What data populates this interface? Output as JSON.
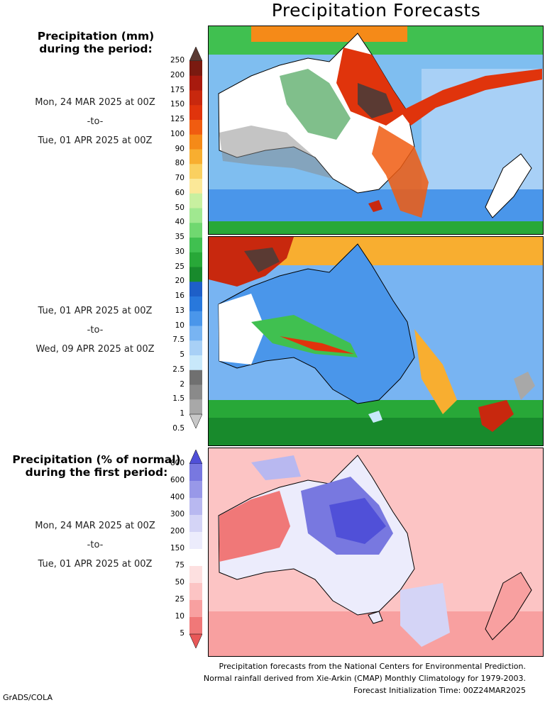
{
  "title": "Precipitation Forecasts",
  "panel1": {
    "header_line1": "Precipitation (mm)",
    "header_line2": "during the period:",
    "start": "Mon, 24 MAR 2025 at 00Z",
    "sep": "-to-",
    "end": "Tue, 01 APR 2025 at 00Z"
  },
  "panel2": {
    "start": "Tue, 01 APR 2025 at 00Z",
    "sep": "-to-",
    "end": "Wed, 09 APR 2025 at 00Z"
  },
  "panel3": {
    "header_line1": "Precipitation (% of normal)",
    "header_line2": "during the first period:",
    "start": "Mon, 24 MAR 2025 at 00Z",
    "sep": "-to-",
    "end": "Tue, 01 APR 2025 at 00Z"
  },
  "mm_scale": {
    "labels": [
      "250",
      "200",
      "175",
      "150",
      "125",
      "100",
      "90",
      "80",
      "70",
      "60",
      "50",
      "40",
      "35",
      "30",
      "25",
      "20",
      "16",
      "13",
      "10",
      "7.5",
      "5",
      "2.5",
      "2",
      "1.5",
      "1",
      "0.5"
    ],
    "colors": [
      "#5a3a33",
      "#7a1a10",
      "#a81a0e",
      "#c8280e",
      "#e0340c",
      "#f05c10",
      "#f58a18",
      "#f8ae30",
      "#fad060",
      "#fbe898",
      "#c8f0a0",
      "#a0e890",
      "#70d870",
      "#40c050",
      "#28a838",
      "#188a2c",
      "#1e5fc8",
      "#2878dc",
      "#4a96ea",
      "#78b4f2",
      "#a8d0f6",
      "#c8e8fa",
      "#707070",
      "#8a8a8a",
      "#a8a8a8",
      "#c8c8c8"
    ]
  },
  "pct_scale": {
    "labels": [
      "800",
      "600",
      "400",
      "300",
      "200",
      "150",
      "75",
      "50",
      "25",
      "10",
      "5"
    ],
    "colors": [
      "#5050d8",
      "#7878e0",
      "#9898e8",
      "#b8b8f0",
      "#d4d4f6",
      "#ececfc",
      "#ffffff",
      "#fde0e0",
      "#fcc4c4",
      "#f8a0a0",
      "#f07878",
      "#e85858"
    ]
  },
  "footer": {
    "line1": "Precipitation forecasts from the National Centers for Environmental Prediction.",
    "line2": "Normal rainfall derived from Xie-Arkin (CMAP) Monthly Climatology for 1979-2003.",
    "line3": "Forecast Initialization Time: 00Z24MAR2025"
  },
  "credit": "GrADS/COLA"
}
